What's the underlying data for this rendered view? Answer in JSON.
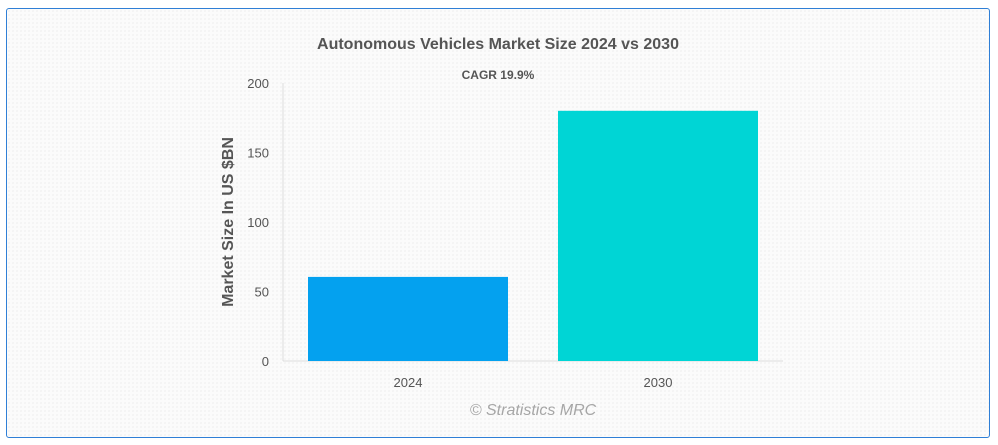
{
  "chart_data": {
    "type": "bar",
    "title": "Autonomous Vehicles Market Size 2024 vs 2030",
    "subtitle": "CAGR 19.9%",
    "ylabel": "Market Size In US $BN",
    "xlabel": "",
    "categories": [
      "2024",
      "2030"
    ],
    "values": [
      60.5,
      180
    ],
    "colors": [
      "#04a1ef",
      "#00d5d5"
    ],
    "ylim": [
      0,
      200
    ],
    "yticks": [
      0,
      50,
      100,
      150,
      200
    ],
    "grid": false,
    "legend": "none"
  },
  "watermark": "© Stratistics MRC"
}
